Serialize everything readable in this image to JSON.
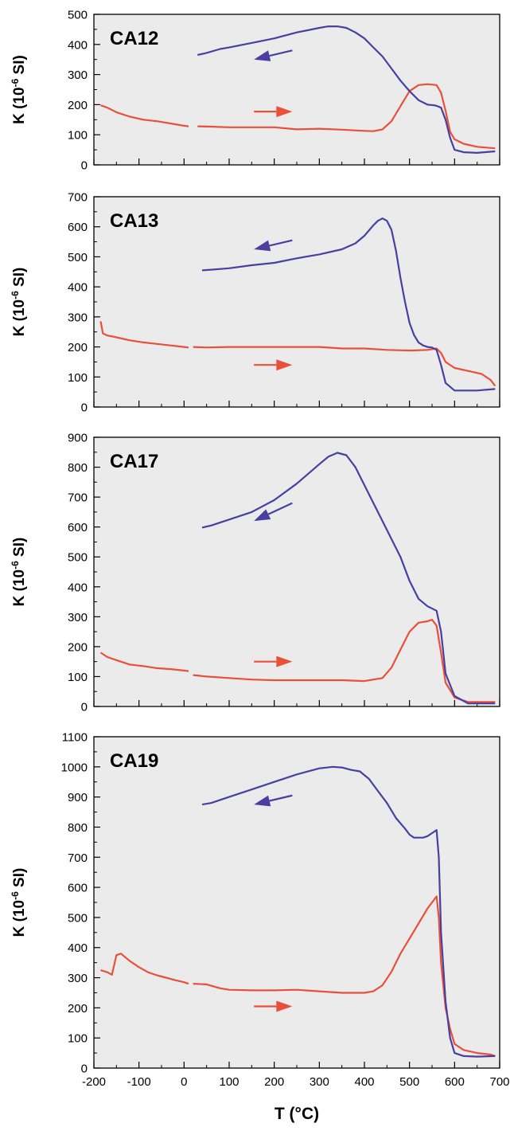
{
  "x_axis": {
    "label": "T (°C)",
    "lim": [
      -200,
      700
    ],
    "ticks": [
      -200,
      -100,
      0,
      100,
      200,
      300,
      400,
      500,
      600,
      700
    ],
    "tick_labels": [
      "-200",
      "-100",
      "0",
      "100",
      "200",
      "300",
      "400",
      "500",
      "600",
      "700"
    ]
  },
  "colors": {
    "heating": "#e8503a",
    "cooling": "#4a3fa0",
    "panel_bg": "#ebebeb"
  },
  "chart_data": [
    {
      "type": "line",
      "title": "CA12",
      "ylabel": "K (10-6 SI)",
      "ylabel_main": "K (10",
      "ylabel_sup": "-6",
      "ylabel_unit": " SI)",
      "xlim": [
        -200,
        700
      ],
      "ylim": [
        0,
        500
      ],
      "yticks": [
        0,
        100,
        200,
        300,
        400,
        500
      ],
      "yminor": 50,
      "series": [
        {
          "color": "#e8503a",
          "x": [
            -185,
            -170,
            -150,
            -120,
            -90,
            -60,
            -40,
            -20,
            0,
            10
          ],
          "y": [
            198,
            190,
            175,
            160,
            150,
            145,
            140,
            135,
            130,
            128
          ]
        },
        {
          "color": "#e8503a",
          "x": [
            30,
            60,
            100,
            150,
            200,
            250,
            300,
            350,
            400,
            420,
            440,
            460,
            480,
            500,
            520,
            540,
            560,
            570,
            580,
            590,
            600,
            620,
            650,
            690
          ],
          "y": [
            128,
            127,
            125,
            125,
            125,
            118,
            120,
            117,
            113,
            112,
            118,
            145,
            195,
            245,
            265,
            268,
            265,
            240,
            180,
            110,
            85,
            70,
            60,
            55
          ]
        },
        {
          "color": "#4a3fa0",
          "x": [
            30,
            50,
            80,
            100,
            150,
            200,
            250,
            300,
            320,
            340,
            360,
            380,
            400,
            420,
            440,
            460,
            480,
            500,
            520,
            540,
            555,
            560,
            570,
            580,
            590,
            600,
            620,
            650,
            690
          ],
          "y": [
            365,
            372,
            385,
            390,
            405,
            420,
            440,
            455,
            460,
            460,
            455,
            440,
            420,
            390,
            360,
            320,
            280,
            245,
            215,
            200,
            198,
            196,
            190,
            150,
            90,
            50,
            42,
            40,
            45
          ]
        }
      ],
      "arrows": [
        {
          "color": "#4a3fa0",
          "from": [
            240,
            380
          ],
          "to": [
            155,
            350
          ]
        },
        {
          "color": "#e8503a",
          "from": [
            155,
            177
          ],
          "to": [
            240,
            177
          ]
        }
      ]
    },
    {
      "type": "line",
      "title": "CA13",
      "ylabel": "K (10-6 SI)",
      "ylabel_main": "K (10",
      "ylabel_sup": "-6",
      "ylabel_unit": " SI)",
      "xlim": [
        -200,
        700
      ],
      "ylim": [
        0,
        700
      ],
      "yticks": [
        0,
        100,
        200,
        300,
        400,
        500,
        600,
        700
      ],
      "yminor": 50,
      "series": [
        {
          "color": "#e8503a",
          "x": [
            -185,
            -180,
            -170,
            -150,
            -120,
            -90,
            -60,
            -30,
            0,
            10
          ],
          "y": [
            285,
            245,
            238,
            232,
            222,
            215,
            210,
            205,
            200,
            198
          ]
        },
        {
          "color": "#e8503a",
          "x": [
            20,
            50,
            100,
            150,
            200,
            250,
            300,
            350,
            400,
            450,
            500,
            540,
            560,
            570,
            580,
            600,
            630,
            660,
            680,
            690
          ],
          "y": [
            200,
            198,
            200,
            200,
            200,
            200,
            200,
            195,
            195,
            190,
            188,
            190,
            195,
            180,
            150,
            130,
            120,
            110,
            90,
            70
          ]
        },
        {
          "color": "#4a3fa0",
          "x": [
            40,
            60,
            100,
            150,
            200,
            250,
            300,
            350,
            380,
            400,
            420,
            430,
            440,
            450,
            460,
            470,
            480,
            490,
            500,
            510,
            520,
            530,
            540,
            550,
            560,
            570,
            580,
            600,
            620,
            650,
            690
          ],
          "y": [
            455,
            457,
            462,
            472,
            480,
            495,
            508,
            525,
            545,
            570,
            605,
            620,
            628,
            620,
            590,
            520,
            430,
            350,
            280,
            240,
            215,
            205,
            200,
            198,
            190,
            140,
            80,
            55,
            55,
            55,
            60
          ]
        }
      ],
      "arrows": [
        {
          "color": "#4a3fa0",
          "from": [
            240,
            555
          ],
          "to": [
            155,
            525
          ]
        },
        {
          "color": "#e8503a",
          "from": [
            155,
            140
          ],
          "to": [
            240,
            140
          ]
        }
      ]
    },
    {
      "type": "line",
      "title": "CA17",
      "ylabel": "K (10-6 SI)",
      "ylabel_main": "K (10",
      "ylabel_sup": "-6",
      "ylabel_unit": " SI)",
      "xlim": [
        -200,
        700
      ],
      "ylim": [
        0,
        900
      ],
      "yticks": [
        0,
        100,
        200,
        300,
        400,
        500,
        600,
        700,
        800,
        900
      ],
      "yminor": 50,
      "series": [
        {
          "color": "#e8503a",
          "x": [
            -185,
            -170,
            -150,
            -120,
            -90,
            -60,
            -30,
            0,
            10
          ],
          "y": [
            180,
            165,
            155,
            140,
            135,
            128,
            125,
            120,
            118
          ]
        },
        {
          "color": "#e8503a",
          "x": [
            20,
            50,
            100,
            150,
            200,
            250,
            300,
            350,
            400,
            440,
            460,
            480,
            500,
            520,
            540,
            550,
            560,
            570,
            580,
            600,
            630,
            660,
            690
          ],
          "y": [
            105,
            100,
            95,
            90,
            88,
            88,
            88,
            88,
            85,
            95,
            130,
            190,
            250,
            280,
            285,
            290,
            270,
            180,
            80,
            30,
            15,
            15,
            15
          ]
        },
        {
          "color": "#4a3fa0",
          "x": [
            40,
            60,
            100,
            150,
            200,
            250,
            300,
            320,
            340,
            360,
            380,
            400,
            420,
            440,
            460,
            480,
            500,
            520,
            540,
            560,
            570,
            580,
            600,
            630,
            660,
            690
          ],
          "y": [
            598,
            605,
            625,
            650,
            690,
            745,
            810,
            835,
            848,
            840,
            800,
            740,
            680,
            620,
            560,
            500,
            420,
            360,
            335,
            320,
            250,
            110,
            35,
            10,
            10,
            10
          ]
        }
      ],
      "arrows": [
        {
          "color": "#4a3fa0",
          "from": [
            240,
            680
          ],
          "to": [
            155,
            620
          ]
        },
        {
          "color": "#e8503a",
          "from": [
            155,
            150
          ],
          "to": [
            240,
            150
          ]
        }
      ]
    },
    {
      "type": "line",
      "title": "CA19",
      "ylabel": "K (10-6 SI)",
      "ylabel_main": "K (10",
      "ylabel_sup": "-6",
      "ylabel_unit": " SI)",
      "xlim": [
        -200,
        700
      ],
      "ylim": [
        0,
        1100
      ],
      "yticks": [
        0,
        100,
        200,
        300,
        400,
        500,
        600,
        700,
        800,
        900,
        1000,
        1100
      ],
      "yminor": 50,
      "series": [
        {
          "color": "#e8503a",
          "x": [
            -185,
            -170,
            -160,
            -150,
            -140,
            -120,
            -100,
            -80,
            -60,
            -40,
            -20,
            0,
            10
          ],
          "y": [
            325,
            318,
            310,
            375,
            380,
            355,
            335,
            318,
            308,
            300,
            292,
            285,
            280
          ]
        },
        {
          "color": "#e8503a",
          "x": [
            20,
            50,
            80,
            100,
            150,
            200,
            250,
            300,
            350,
            400,
            420,
            440,
            460,
            480,
            500,
            520,
            540,
            560,
            565,
            570,
            580,
            590,
            600,
            620,
            650,
            680,
            690
          ],
          "y": [
            280,
            278,
            265,
            260,
            258,
            258,
            260,
            255,
            250,
            250,
            255,
            275,
            320,
            380,
            430,
            480,
            530,
            570,
            500,
            350,
            200,
            130,
            80,
            60,
            50,
            45,
            40
          ]
        },
        {
          "color": "#4a3fa0",
          "x": [
            40,
            60,
            100,
            150,
            200,
            250,
            300,
            330,
            350,
            370,
            390,
            410,
            430,
            450,
            470,
            490,
            500,
            510,
            520,
            530,
            540,
            550,
            560,
            565,
            570,
            580,
            590,
            600,
            620,
            650,
            690
          ],
          "y": [
            875,
            880,
            900,
            925,
            950,
            975,
            995,
            1000,
            998,
            990,
            985,
            960,
            920,
            880,
            830,
            795,
            775,
            765,
            765,
            765,
            770,
            780,
            790,
            700,
            450,
            220,
            100,
            50,
            40,
            38,
            40
          ]
        }
      ],
      "arrows": [
        {
          "color": "#4a3fa0",
          "from": [
            240,
            905
          ],
          "to": [
            155,
            875
          ]
        },
        {
          "color": "#e8503a",
          "from": [
            155,
            205
          ],
          "to": [
            240,
            205
          ]
        }
      ]
    }
  ]
}
